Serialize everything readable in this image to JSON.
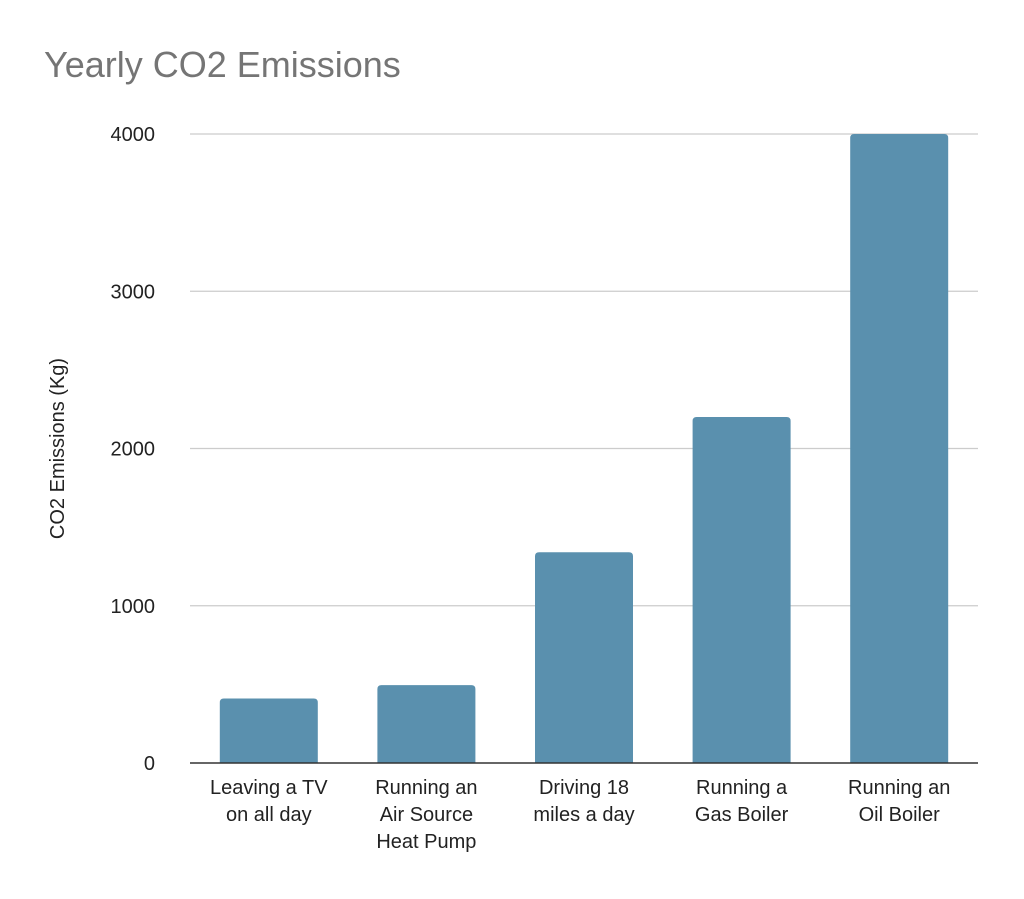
{
  "chart_data": {
    "type": "bar",
    "title": "Yearly CO2 Emissions",
    "xlabel": "",
    "ylabel": "CO2 Emissions (Kg)",
    "categories": [
      [
        "Leaving a TV",
        "on all day"
      ],
      [
        "Running an",
        "Air Source",
        "Heat Pump"
      ],
      [
        "Driving 18",
        "miles a day"
      ],
      [
        "Running a",
        "Gas Boiler"
      ],
      [
        "Running an",
        "Oil Boiler"
      ]
    ],
    "values": [
      410,
      495,
      1340,
      2200,
      4000
    ],
    "ylim": [
      0,
      4000
    ],
    "yticks": [
      0,
      1000,
      2000,
      3000,
      4000
    ],
    "grid": true,
    "bar_color": "#5a90ae",
    "grid_color": "#cccccc",
    "axis_color": "#333333"
  }
}
